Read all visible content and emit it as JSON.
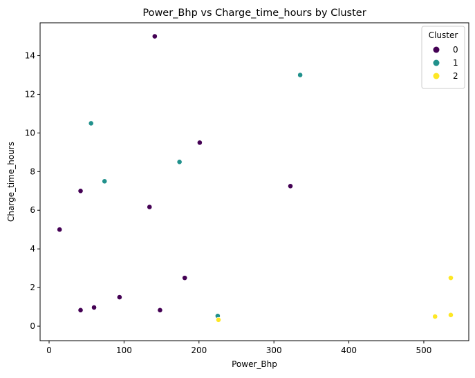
{
  "chart_data": {
    "type": "scatter",
    "title": "Power_Bhp vs Charge_time_hours by Cluster",
    "xlabel": "Power_Bhp",
    "ylabel": "Charge_time_hours",
    "xlim": [
      -12,
      560
    ],
    "ylim": [
      -0.75,
      15.7
    ],
    "xticks": [
      0,
      100,
      200,
      300,
      400,
      500
    ],
    "yticks": [
      0,
      2,
      4,
      6,
      8,
      10,
      12,
      14
    ],
    "grid": false,
    "legend": {
      "title": "Cluster",
      "position": "top-right",
      "entries": [
        "0",
        "1",
        "2"
      ]
    },
    "colors": {
      "0": "#440154",
      "1": "#21918c",
      "2": "#fde725"
    },
    "series": [
      {
        "name": "0",
        "points": [
          {
            "x": 141,
            "y": 15.0
          },
          {
            "x": 201,
            "y": 9.5
          },
          {
            "x": 42,
            "y": 7.0
          },
          {
            "x": 322,
            "y": 7.25
          },
          {
            "x": 134,
            "y": 6.17
          },
          {
            "x": 14,
            "y": 5.0
          },
          {
            "x": 181,
            "y": 2.5
          },
          {
            "x": 94,
            "y": 1.5
          },
          {
            "x": 60,
            "y": 0.97
          },
          {
            "x": 42,
            "y": 0.83
          },
          {
            "x": 148,
            "y": 0.83
          }
        ]
      },
      {
        "name": "1",
        "points": [
          {
            "x": 335,
            "y": 13.0
          },
          {
            "x": 56,
            "y": 10.5
          },
          {
            "x": 174,
            "y": 8.5
          },
          {
            "x": 74,
            "y": 7.5
          },
          {
            "x": 225,
            "y": 0.53
          }
        ]
      },
      {
        "name": "2",
        "points": [
          {
            "x": 226,
            "y": 0.33
          },
          {
            "x": 515,
            "y": 0.5
          },
          {
            "x": 536,
            "y": 0.58
          },
          {
            "x": 536,
            "y": 2.5
          }
        ]
      }
    ]
  }
}
